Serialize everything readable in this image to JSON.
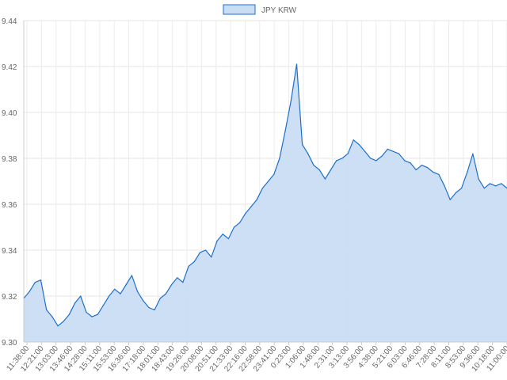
{
  "chart_data": {
    "type": "area",
    "title": "",
    "xlabel": "",
    "ylabel": "",
    "legend": {
      "position": "top",
      "entries": [
        "JPY KRW"
      ]
    },
    "grid": true,
    "ylim": [
      9.3,
      9.44
    ],
    "y_ticks": [
      "9.30",
      "9.32",
      "9.34",
      "9.36",
      "9.38",
      "9.40",
      "9.42",
      "9.44"
    ],
    "x_tick_labels": [
      "11:38:00",
      "12:21:00",
      "13:03:00",
      "13:46:00",
      "14:28:00",
      "15:11:00",
      "15:53:00",
      "16:36:00",
      "17:18:00",
      "18:01:00",
      "18:43:00",
      "19:26:00",
      "20:08:00",
      "20:51:00",
      "21:33:00",
      "22:16:00",
      "22:58:00",
      "23:41:00",
      "0:23:00",
      "1:06:00",
      "1:48:00",
      "2:31:00",
      "3:13:00",
      "3:56:00",
      "4:38:00",
      "5:21:00",
      "6:03:00",
      "6:46:00",
      "7:28:00",
      "8:11:00",
      "8:53:00",
      "9:36:00",
      "10:18:00",
      "11:00:00"
    ],
    "series": [
      {
        "name": "JPY KRW",
        "color": "#1e6fcc",
        "fill": "#c9ddf4",
        "values": [
          9.319,
          9.322,
          9.326,
          9.327,
          9.314,
          9.311,
          9.307,
          9.309,
          9.312,
          9.317,
          9.32,
          9.313,
          9.311,
          9.312,
          9.316,
          9.32,
          9.323,
          9.321,
          9.325,
          9.329,
          9.322,
          9.318,
          9.315,
          9.314,
          9.319,
          9.321,
          9.325,
          9.328,
          9.326,
          9.333,
          9.335,
          9.339,
          9.34,
          9.337,
          9.344,
          9.347,
          9.345,
          9.35,
          9.352,
          9.356,
          9.359,
          9.362,
          9.367,
          9.37,
          9.373,
          9.38,
          9.392,
          9.405,
          9.421,
          9.386,
          9.382,
          9.377,
          9.375,
          9.371,
          9.375,
          9.379,
          9.38,
          9.382,
          9.388,
          9.386,
          9.383,
          9.38,
          9.379,
          9.381,
          9.384,
          9.383,
          9.382,
          9.379,
          9.378,
          9.375,
          9.377,
          9.376,
          9.374,
          9.373,
          9.368,
          9.362,
          9.365,
          9.367,
          9.374,
          9.382,
          9.371,
          9.367,
          9.369,
          9.368,
          9.369,
          9.367
        ]
      }
    ]
  }
}
